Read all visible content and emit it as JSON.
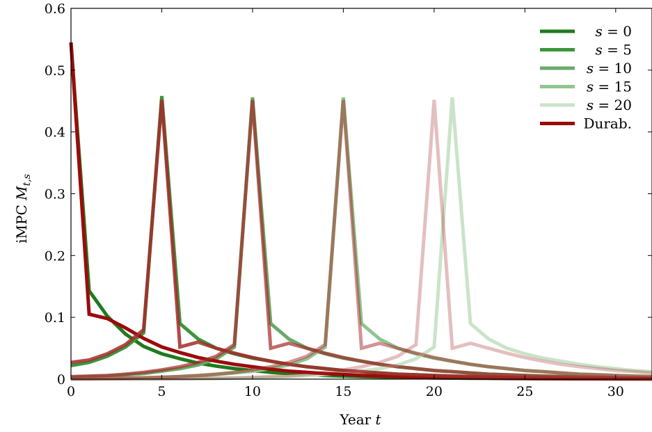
{
  "chart_data": {
    "type": "line",
    "title": "",
    "xlabel": "Year t",
    "ylabel": "iMPC M_{t,s}",
    "xlim": [
      0,
      32
    ],
    "ylim": [
      0,
      0.6
    ],
    "x_ticks": [
      0,
      5,
      10,
      15,
      20,
      25,
      30
    ],
    "x_tick_labels": [
      "0",
      "5",
      "10",
      "15",
      "20",
      "25",
      "30"
    ],
    "y_ticks": [
      0,
      0.1,
      0.2,
      0.3,
      0.4,
      0.5,
      0.6
    ],
    "y_tick_labels": [
      "0",
      "0.1",
      "0.2",
      "0.3",
      "0.4",
      "0.5",
      "0.6"
    ],
    "grid": false,
    "legend_position": "top-right",
    "x": [
      0,
      1,
      2,
      3,
      4,
      5,
      6,
      7,
      8,
      9,
      10,
      11,
      12,
      13,
      14,
      15,
      16,
      17,
      18,
      19,
      20,
      21,
      22,
      23,
      24,
      25,
      26,
      27,
      28,
      29,
      30,
      31,
      32
    ],
    "series": [
      {
        "name": "s = 0",
        "group": "nondurable",
        "color": "#1e7b1e",
        "opacity": 1.0,
        "values": [
          0.545,
          0.143,
          0.102,
          0.073,
          0.053,
          0.041,
          0.033,
          0.026,
          0.021,
          0.017,
          0.014,
          0.011,
          0.009,
          0.0075,
          0.006,
          0.005,
          0.004,
          0.0035,
          0.003,
          0.0025,
          0.002,
          0.0017,
          0.0014,
          0.0012,
          0.001,
          0.0008,
          0.0007,
          0.0006,
          0.0005,
          0.0004,
          0.0003,
          0.0003,
          0.0002
        ]
      },
      {
        "name": "s = 5",
        "group": "nondurable",
        "color": "#3c963c",
        "opacity": 1.0,
        "values": [
          0.022,
          0.027,
          0.037,
          0.052,
          0.075,
          0.458,
          0.09,
          0.065,
          0.05,
          0.041,
          0.034,
          0.029,
          0.024,
          0.02,
          0.017,
          0.014,
          0.012,
          0.01,
          0.008,
          0.007,
          0.006,
          0.005,
          0.0042,
          0.0035,
          0.003,
          0.0025,
          0.0021,
          0.0018,
          0.0015,
          0.0012,
          0.001,
          0.0008,
          0.0007
        ]
      },
      {
        "name": "s = 10",
        "group": "nondurable",
        "color": "#6aaa6a",
        "opacity": 1.0,
        "values": [
          0.003,
          0.004,
          0.005,
          0.007,
          0.009,
          0.013,
          0.017,
          0.023,
          0.033,
          0.052,
          0.456,
          0.09,
          0.065,
          0.05,
          0.041,
          0.034,
          0.029,
          0.024,
          0.02,
          0.017,
          0.014,
          0.012,
          0.01,
          0.008,
          0.007,
          0.006,
          0.005,
          0.0042,
          0.0035,
          0.003,
          0.0025,
          0.0021,
          0.0018
        ]
      },
      {
        "name": "s = 15",
        "group": "nondurable",
        "color": "#8fc68f",
        "opacity": 1.0,
        "values": [
          0.0005,
          0.0007,
          0.001,
          0.0014,
          0.002,
          0.0028,
          0.004,
          0.0055,
          0.0075,
          0.01,
          0.013,
          0.017,
          0.023,
          0.033,
          0.052,
          0.456,
          0.09,
          0.065,
          0.05,
          0.041,
          0.034,
          0.029,
          0.024,
          0.02,
          0.017,
          0.014,
          0.012,
          0.01,
          0.008,
          0.007,
          0.006,
          0.005,
          0.0042
        ]
      },
      {
        "name": "s = 20",
        "group": "nondurable",
        "color": "#c9e4c9",
        "opacity": 1.0,
        "values": [
          0.0001,
          0.0001,
          0.0002,
          0.0002,
          0.0003,
          0.0004,
          0.0005,
          0.0007,
          0.001,
          0.0014,
          0.002,
          0.0028,
          0.004,
          0.0055,
          0.0075,
          0.01,
          0.013,
          0.017,
          0.023,
          0.033,
          0.052,
          0.456,
          0.09,
          0.065,
          0.05,
          0.041,
          0.034,
          0.029,
          0.024,
          0.02,
          0.017,
          0.014,
          0.012
        ],
        "x_offset_note": ""
      },
      {
        "name": "Durab.",
        "group": "durable",
        "color": "#9b0b0b",
        "opacity": 1.0,
        "values": [
          0.545,
          0.105,
          0.098,
          0.083,
          0.066,
          0.052,
          0.043,
          0.035,
          0.029,
          0.024,
          0.02,
          0.016,
          0.013,
          0.011,
          0.009,
          0.0075,
          0.006,
          0.005,
          0.004,
          0.0035,
          0.003,
          0.0025,
          0.002,
          0.0017,
          0.0014,
          0.0012,
          0.001,
          0.0008,
          0.0007,
          0.0006,
          0.0005,
          0.0004,
          0.0003
        ]
      },
      {
        "name": "",
        "group": "durable",
        "color": "#a52a2a",
        "opacity": 0.85,
        "values": [
          0.027,
          0.031,
          0.041,
          0.056,
          0.08,
          0.452,
          0.052,
          0.06,
          0.05,
          0.042,
          0.035,
          0.029,
          0.024,
          0.02,
          0.017,
          0.014,
          0.012,
          0.01,
          0.008,
          0.007,
          0.006,
          0.005,
          0.0042,
          0.0035,
          0.003,
          0.0025,
          0.0021,
          0.0018,
          0.0015,
          0.0012,
          0.001,
          0.0008,
          0.0007
        ]
      },
      {
        "name": "",
        "group": "durable",
        "color": "#a52a2a",
        "opacity": 0.7,
        "values": [
          0.004,
          0.005,
          0.006,
          0.008,
          0.011,
          0.015,
          0.02,
          0.027,
          0.037,
          0.056,
          0.452,
          0.05,
          0.058,
          0.05,
          0.042,
          0.035,
          0.029,
          0.024,
          0.02,
          0.017,
          0.014,
          0.012,
          0.01,
          0.008,
          0.007,
          0.006,
          0.005,
          0.0042,
          0.0035,
          0.003,
          0.0025,
          0.0021,
          0.0018
        ]
      },
      {
        "name": "",
        "group": "durable",
        "color": "#a52a2a",
        "opacity": 0.5,
        "values": [
          0.0007,
          0.0009,
          0.0012,
          0.0016,
          0.0022,
          0.003,
          0.0042,
          0.006,
          0.008,
          0.011,
          0.015,
          0.02,
          0.027,
          0.037,
          0.056,
          0.452,
          0.05,
          0.058,
          0.05,
          0.042,
          0.035,
          0.029,
          0.024,
          0.02,
          0.017,
          0.014,
          0.012,
          0.01,
          0.008,
          0.007,
          0.006,
          0.005,
          0.0042
        ]
      },
      {
        "name": "",
        "group": "durable",
        "color": "#a52a2a",
        "opacity": 0.3,
        "values": [
          0.0001,
          0.0001,
          0.0002,
          0.0003,
          0.0004,
          0.0005,
          0.0007,
          0.001,
          0.0014,
          0.002,
          0.0028,
          0.004,
          0.0055,
          0.0075,
          0.011,
          0.015,
          0.02,
          0.027,
          0.037,
          0.056,
          0.452,
          0.05,
          0.058,
          0.05,
          0.042,
          0.035,
          0.029,
          0.024,
          0.02,
          0.017,
          0.014,
          0.012,
          0.01
        ]
      }
    ],
    "legend": [
      {
        "label_italic": "s",
        "label_rest": " = 0",
        "color": "#1e7b1e"
      },
      {
        "label_italic": "s",
        "label_rest": " = 5",
        "color": "#3c963c"
      },
      {
        "label_italic": "s",
        "label_rest": " = 10",
        "color": "#6aaa6a"
      },
      {
        "label_italic": "s",
        "label_rest": " = 15",
        "color": "#8fc68f"
      },
      {
        "label_italic": "s",
        "label_rest": " = 20",
        "color": "#c9e4c9"
      },
      {
        "label_italic": "",
        "label_rest": "Durab.",
        "color": "#9b0b0b"
      }
    ]
  }
}
